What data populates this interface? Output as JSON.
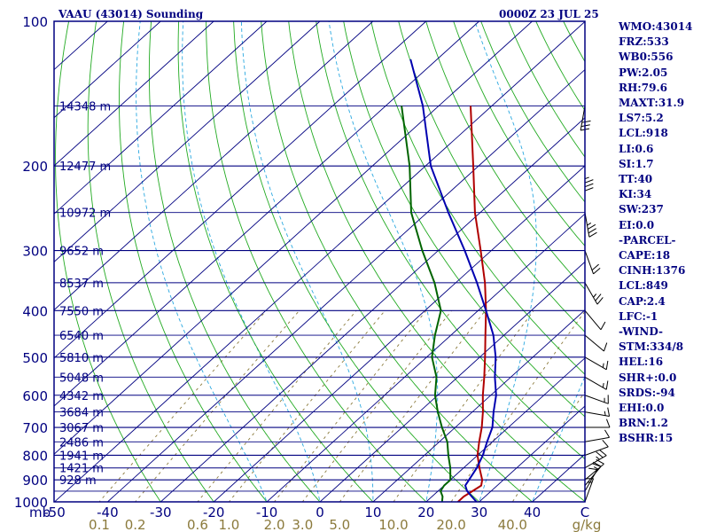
{
  "header": {
    "station": "VAAU (43014) Sounding",
    "time": "0000Z 23 JUL 25"
  },
  "indices": [
    "WMO:43014",
    "FRZ:533",
    "WB0:556",
    "PW:2.05",
    "RH:79.6",
    "MAXT:31.9",
    "LS7:5.2",
    "LCL:918",
    "LI:0.6",
    "SI:1.7",
    "TT:40",
    "KI:34",
    "SW:237",
    "EI:0.0",
    "-PARCEL-",
    "CAPE:18",
    "CINH:1376",
    "LCL:849",
    "CAP:2.4",
    "LFC:-1",
    "-WIND-",
    "STM:334/8",
    "HEL:16",
    "SHR+:0.0",
    "SRDS:-94",
    "EHI:0.0",
    "BRN:1.2",
    "BSHR:15"
  ],
  "colors": {
    "frame": "#000080",
    "isobar": "#000080",
    "isotherm": "#000080",
    "dry_adiabat": "#22aa22",
    "moist_adiabat": "#2aa8e0",
    "mixing_ratio": "#8b7a3c",
    "temperature": "#b00000",
    "dewpoint": "#006400",
    "parcel": "#0000b0",
    "wind": "#000000"
  },
  "chart_data": {
    "type": "line",
    "title": "VAAU (43014) Sounding",
    "xlabel": "C",
    "ylabel": "mb",
    "pressure_range": [
      1000,
      100
    ],
    "temperature_range": [
      -50,
      50
    ],
    "pressure_ticks": [
      "100",
      "200",
      "300",
      "400",
      "500",
      "600",
      "700",
      "800",
      "900",
      "1000"
    ],
    "temperature_ticks": [
      "-50",
      "-40",
      "-30",
      "-20",
      "-10",
      "0",
      "10",
      "20",
      "30",
      "40",
      "C"
    ],
    "mixing_ratio_ticks": [
      "0.1",
      "0.2",
      "0.6",
      "1.0",
      "2.0",
      "3.0",
      "5.0",
      "10.0",
      "20.0",
      "40.0",
      "g/kg"
    ],
    "height_labels": [
      {
        "p": 150,
        "label": "14348 m"
      },
      {
        "p": 200,
        "label": "12477 m"
      },
      {
        "p": 250,
        "label": "10972 m"
      },
      {
        "p": 300,
        "label": "9652 m"
      },
      {
        "p": 350,
        "label": "8537 m"
      },
      {
        "p": 400,
        "label": "7550 m"
      },
      {
        "p": 450,
        "label": "6540 m"
      },
      {
        "p": 500,
        "label": "5810 m"
      },
      {
        "p": 550,
        "label": "5048 m"
      },
      {
        "p": 600,
        "label": "4342 m"
      },
      {
        "p": 650,
        "label": "3684 m"
      },
      {
        "p": 700,
        "label": "3067 m"
      },
      {
        "p": 750,
        "label": "2486 m"
      },
      {
        "p": 800,
        "label": "1941 m"
      },
      {
        "p": 850,
        "label": "1421 m"
      },
      {
        "p": 900,
        "label": "928 m"
      }
    ],
    "series": [
      {
        "key": "temperature",
        "points": [
          [
            1000,
            26.0
          ],
          [
            975,
            26.0
          ],
          [
            950,
            26.5
          ],
          [
            925,
            27.0
          ],
          [
            900,
            26.0
          ],
          [
            850,
            23.0
          ],
          [
            800,
            20.0
          ],
          [
            750,
            17.5
          ],
          [
            700,
            15.0
          ],
          [
            650,
            12.0
          ],
          [
            600,
            8.5
          ],
          [
            550,
            5.0
          ],
          [
            500,
            1.0
          ],
          [
            450,
            -3.5
          ],
          [
            400,
            -8.5
          ],
          [
            350,
            -14.5
          ],
          [
            300,
            -22.0
          ],
          [
            250,
            -31.0
          ],
          [
            200,
            -41.0
          ],
          [
            150,
            -54.0
          ]
        ]
      },
      {
        "key": "dewpoint",
        "points": [
          [
            1000,
            23.0
          ],
          [
            975,
            22.0
          ],
          [
            950,
            20.5
          ],
          [
            925,
            20.0
          ],
          [
            900,
            20.0
          ],
          [
            850,
            17.5
          ],
          [
            800,
            14.5
          ],
          [
            750,
            11.5
          ],
          [
            700,
            7.5
          ],
          [
            650,
            3.5
          ],
          [
            600,
            -0.5
          ],
          [
            550,
            -4.0
          ],
          [
            500,
            -9.0
          ],
          [
            450,
            -13.0
          ],
          [
            400,
            -17.0
          ],
          [
            350,
            -24.0
          ],
          [
            300,
            -33.0
          ],
          [
            250,
            -43.0
          ],
          [
            200,
            -53.0
          ],
          [
            150,
            -67.0
          ]
        ]
      },
      {
        "key": "parcel",
        "points": [
          [
            1000,
            29.5
          ],
          [
            975,
            27.5
          ],
          [
            950,
            25.5
          ],
          [
            925,
            24.0
          ],
          [
            900,
            23.5
          ],
          [
            850,
            22.5
          ],
          [
            800,
            21.0
          ],
          [
            750,
            19.0
          ],
          [
            700,
            17.0
          ],
          [
            650,
            14.0
          ],
          [
            600,
            11.0
          ],
          [
            550,
            7.0
          ],
          [
            500,
            3.0
          ],
          [
            450,
            -2.0
          ],
          [
            400,
            -8.5
          ],
          [
            350,
            -16.0
          ],
          [
            300,
            -25.0
          ],
          [
            250,
            -36.0
          ],
          [
            200,
            -49.0
          ],
          [
            150,
            -63.0
          ],
          [
            120,
            -75.0
          ]
        ]
      }
    ]
  }
}
